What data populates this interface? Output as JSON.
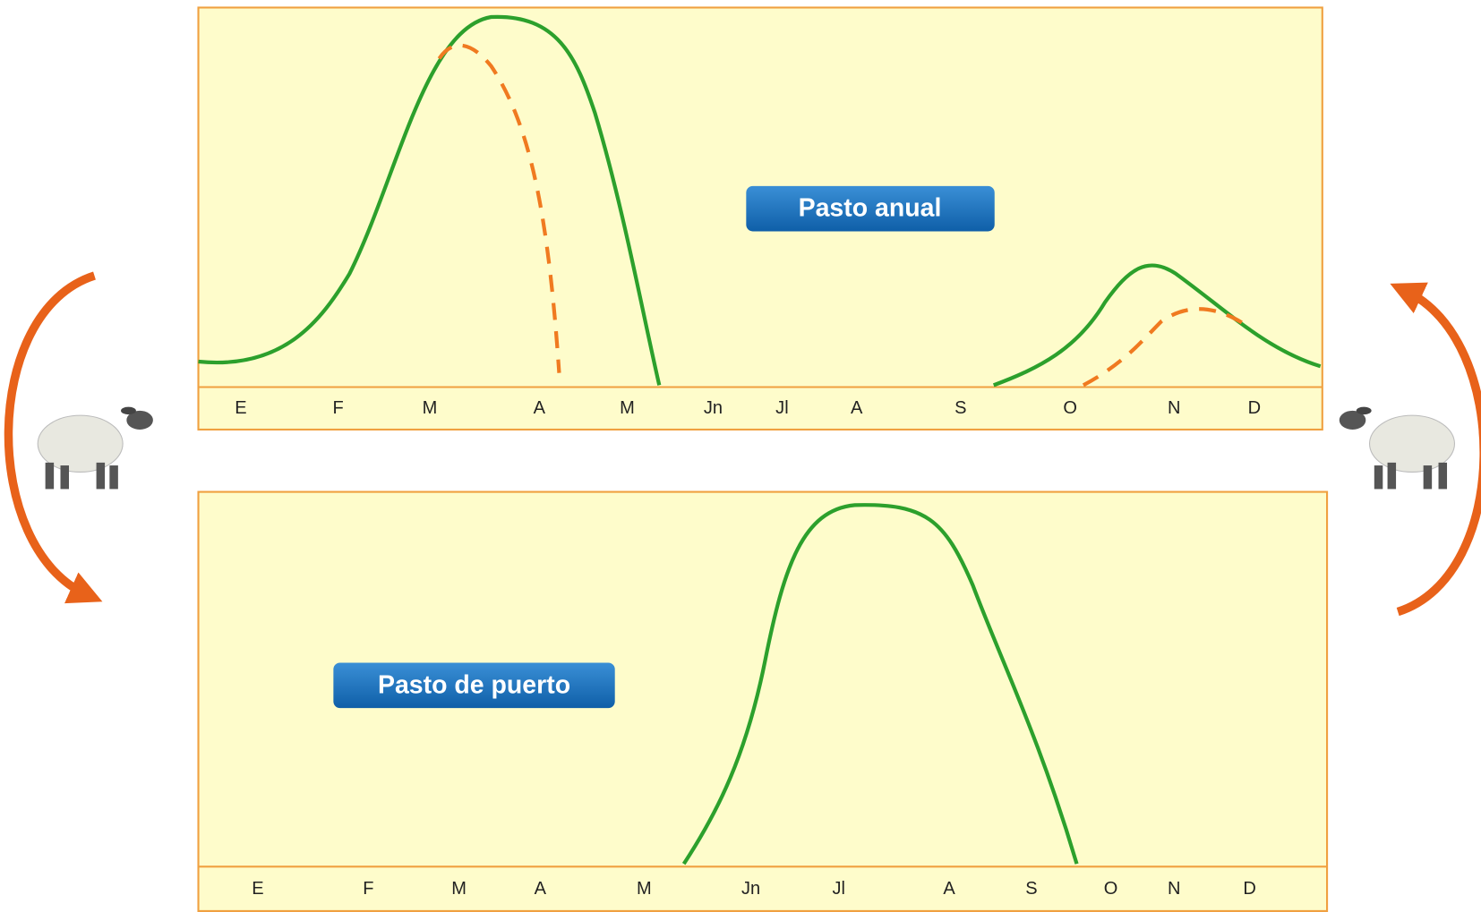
{
  "top_panel": {
    "label": "Pasto anual",
    "months": [
      "E",
      "F",
      "M",
      "A",
      "M",
      "Jn",
      "Jl",
      "A",
      "S",
      "O",
      "N",
      "D"
    ]
  },
  "bottom_panel": {
    "label": "Pasto de puerto",
    "months": [
      "E",
      "F",
      "M",
      "A",
      "M",
      "Jn",
      "Jl",
      "A",
      "S",
      "O",
      "N",
      "D"
    ]
  }
}
